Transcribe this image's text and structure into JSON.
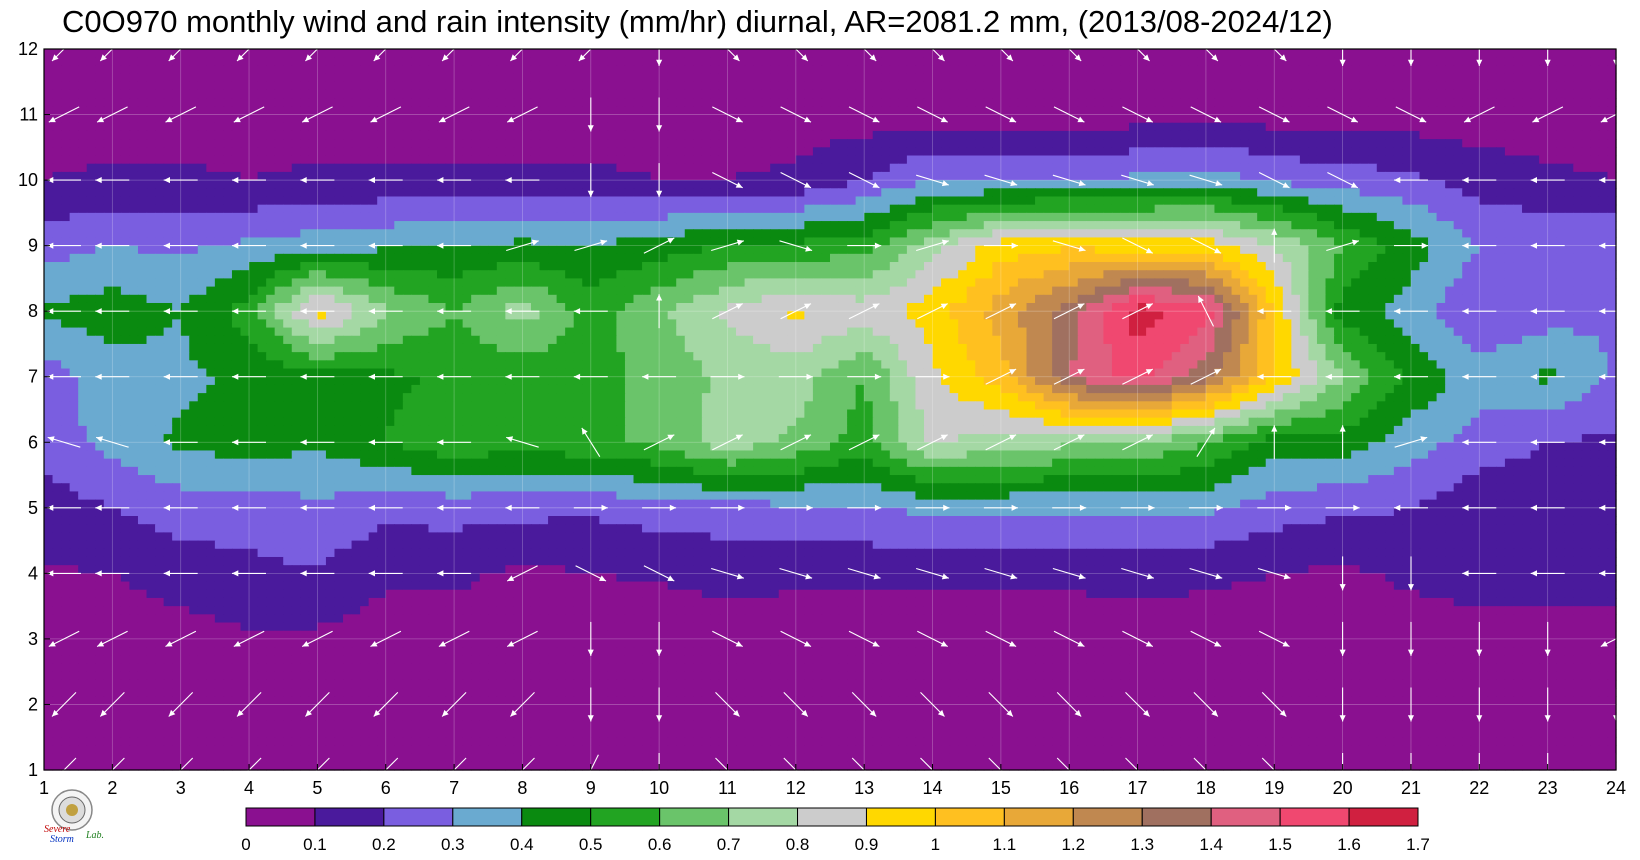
{
  "chart_data": {
    "type": "heatmap",
    "title": "C0O970 monthly wind and rain intensity (mm/hr) diurnal, AR=2081.2 mm, (2013/08-2024/12)",
    "xlabel": "",
    "ylabel": "",
    "xlim": [
      1,
      24
    ],
    "ylim": [
      1,
      12
    ],
    "x_ticks": [
      "1",
      "2",
      "3",
      "4",
      "5",
      "6",
      "7",
      "8",
      "9",
      "10",
      "11",
      "12",
      "13",
      "14",
      "15",
      "16",
      "17",
      "18",
      "19",
      "20",
      "21",
      "22",
      "23",
      "24"
    ],
    "y_ticks": [
      "1",
      "2",
      "3",
      "4",
      "5",
      "6",
      "7",
      "8",
      "9",
      "10",
      "11",
      "12"
    ],
    "grid": true,
    "colorbar": {
      "placement": "bottom",
      "levels": [
        "0",
        "0.1",
        "0.2",
        "0.3",
        "0.4",
        "0.5",
        "0.6",
        "0.7",
        "0.8",
        "0.9",
        "1",
        "1.1",
        "1.2",
        "1.3",
        "1.4",
        "1.5",
        "1.6",
        "1.7"
      ],
      "colors": [
        "#8a1090",
        "#4a1a9c",
        "#7a5ee0",
        "#6aaad0",
        "#0a8a10",
        "#22a422",
        "#6ac46a",
        "#a4d8a4",
        "#cccccc",
        "#ffd800",
        "#ffc020",
        "#e8a838",
        "#c08850",
        "#a07060",
        "#e06080",
        "#f04870",
        "#d02040"
      ]
    },
    "z_rows_by_month": [
      [
        0.05,
        0.05,
        0.05,
        0.05,
        0.05,
        0.05,
        0.05,
        0.05,
        0.05,
        0.05,
        0.05,
        0.05,
        0.05,
        0.05,
        0.05,
        0.05,
        0.05,
        0.05,
        0.05,
        0.05,
        0.05,
        0.05,
        0.05,
        0.05
      ],
      [
        0.05,
        0.05,
        0.05,
        0.05,
        0.05,
        0.05,
        0.05,
        0.05,
        0.05,
        0.05,
        0.05,
        0.05,
        0.05,
        0.05,
        0.05,
        0.05,
        0.05,
        0.05,
        0.05,
        0.05,
        0.05,
        0.05,
        0.05,
        0.05
      ],
      [
        0.05,
        0.05,
        0.05,
        0.09,
        0.08,
        0.05,
        0.05,
        0.05,
        0.05,
        0.05,
        0.05,
        0.05,
        0.05,
        0.05,
        0.05,
        0.05,
        0.05,
        0.05,
        0.05,
        0.05,
        0.05,
        0.05,
        0.05,
        0.05
      ],
      [
        0.09,
        0.1,
        0.15,
        0.18,
        0.19,
        0.12,
        0.12,
        0.08,
        0.1,
        0.11,
        0.13,
        0.12,
        0.12,
        0.12,
        0.12,
        0.12,
        0.13,
        0.12,
        0.1,
        0.08,
        0.12,
        0.15,
        0.15,
        0.15
      ],
      [
        0.15,
        0.2,
        0.25,
        0.24,
        0.28,
        0.23,
        0.24,
        0.23,
        0.22,
        0.25,
        0.26,
        0.28,
        0.3,
        0.32,
        0.32,
        0.32,
        0.33,
        0.32,
        0.25,
        0.22,
        0.2,
        0.13,
        0.14,
        0.15
      ],
      [
        0.25,
        0.33,
        0.42,
        0.45,
        0.42,
        0.5,
        0.58,
        0.54,
        0.58,
        0.62,
        0.76,
        0.68,
        0.55,
        0.82,
        0.75,
        0.72,
        0.7,
        0.6,
        0.45,
        0.45,
        0.35,
        0.25,
        0.2,
        0.18
      ],
      [
        0.25,
        0.36,
        0.38,
        0.42,
        0.46,
        0.48,
        0.52,
        0.52,
        0.56,
        0.64,
        0.72,
        0.75,
        0.6,
        0.88,
        1.05,
        1.4,
        1.55,
        1.35,
        1.0,
        0.7,
        0.48,
        0.35,
        0.42,
        0.28
      ],
      [
        0.42,
        0.45,
        0.4,
        0.55,
        0.95,
        0.72,
        0.6,
        0.75,
        0.55,
        0.68,
        0.82,
        0.92,
        0.85,
        0.95,
        1.15,
        1.35,
        1.65,
        1.55,
        1.0,
        0.45,
        0.35,
        0.2,
        0.25,
        0.3
      ],
      [
        0.25,
        0.3,
        0.28,
        0.32,
        0.35,
        0.38,
        0.4,
        0.42,
        0.4,
        0.45,
        0.5,
        0.52,
        0.55,
        0.75,
        0.95,
        0.98,
        0.95,
        0.95,
        0.8,
        0.6,
        0.45,
        0.3,
        0.28,
        0.28
      ],
      [
        0.1,
        0.12,
        0.12,
        0.1,
        0.12,
        0.12,
        0.12,
        0.12,
        0.12,
        0.1,
        0.1,
        0.12,
        0.2,
        0.3,
        0.28,
        0.3,
        0.32,
        0.35,
        0.28,
        0.25,
        0.22,
        0.15,
        0.12,
        0.1
      ],
      [
        0.05,
        0.05,
        0.05,
        0.05,
        0.05,
        0.05,
        0.05,
        0.05,
        0.05,
        0.05,
        0.05,
        0.05,
        0.05,
        0.05,
        0.05,
        0.05,
        0.05,
        0.08,
        0.05,
        0.05,
        0.05,
        0.05,
        0.05,
        0.05
      ],
      [
        0.05,
        0.05,
        0.05,
        0.05,
        0.05,
        0.05,
        0.05,
        0.05,
        0.05,
        0.05,
        0.05,
        0.05,
        0.05,
        0.05,
        0.05,
        0.05,
        0.05,
        0.05,
        0.05,
        0.05,
        0.05,
        0.05,
        0.05,
        0.05
      ]
    ],
    "wind_vectors_by_month": [
      [
        [
          -1,
          -1
        ],
        [
          -1,
          -1
        ],
        [
          -1,
          -1
        ],
        [
          -1,
          -1
        ],
        [
          -1,
          -1
        ],
        [
          -1,
          -1
        ],
        [
          -1,
          -1
        ],
        [
          -1,
          -1
        ],
        [
          -0.5,
          -1
        ],
        [
          0,
          -1
        ],
        [
          1,
          -1
        ],
        [
          1,
          -1
        ],
        [
          1,
          -1
        ],
        [
          1,
          -1
        ],
        [
          1,
          -1
        ],
        [
          1,
          -1
        ],
        [
          1,
          -1
        ],
        [
          1,
          -1
        ],
        [
          1,
          -1
        ],
        [
          0,
          -1
        ],
        [
          0,
          -1
        ],
        [
          0,
          -1
        ],
        [
          0,
          -1
        ],
        [
          0,
          -1
        ]
      ],
      [
        [
          -1,
          -1
        ],
        [
          -1,
          -1
        ],
        [
          -1,
          -1
        ],
        [
          -1,
          -1
        ],
        [
          -1,
          -1
        ],
        [
          -1,
          -1
        ],
        [
          -1,
          -1
        ],
        [
          -1,
          -1
        ],
        [
          0,
          -1
        ],
        [
          0,
          -1
        ],
        [
          1,
          -1
        ],
        [
          1,
          -1
        ],
        [
          1,
          -1
        ],
        [
          1,
          -1
        ],
        [
          1,
          -1
        ],
        [
          1,
          -1
        ],
        [
          1,
          -1
        ],
        [
          1,
          -1
        ],
        [
          1,
          -1
        ],
        [
          0,
          -1
        ],
        [
          0,
          -1
        ],
        [
          0,
          -1
        ],
        [
          0,
          -1
        ],
        [
          0,
          -1
        ]
      ],
      [
        [
          -1,
          -0.5
        ],
        [
          -1,
          -0.5
        ],
        [
          -1,
          -0.5
        ],
        [
          -1,
          -0.5
        ],
        [
          -1,
          -0.5
        ],
        [
          -1,
          -0.5
        ],
        [
          -1,
          -0.5
        ],
        [
          -1,
          -0.5
        ],
        [
          0,
          -1
        ],
        [
          0,
          -1
        ],
        [
          1,
          -0.5
        ],
        [
          1,
          -0.5
        ],
        [
          1,
          -0.5
        ],
        [
          1,
          -0.5
        ],
        [
          1,
          -0.5
        ],
        [
          1,
          -0.5
        ],
        [
          1,
          -0.5
        ],
        [
          1,
          -0.5
        ],
        [
          1,
          -0.5
        ],
        [
          0,
          -1
        ],
        [
          0,
          -1
        ],
        [
          0,
          -1
        ],
        [
          0,
          -1
        ],
        [
          -1,
          -0.5
        ]
      ],
      [
        [
          -1,
          0
        ],
        [
          -1,
          0
        ],
        [
          -1,
          0
        ],
        [
          -1,
          0
        ],
        [
          -1,
          0
        ],
        [
          -1,
          0
        ],
        [
          -1,
          0
        ],
        [
          -1,
          -0.5
        ],
        [
          1,
          -0.5
        ],
        [
          1,
          -0.5
        ],
        [
          1,
          -0.3
        ],
        [
          1,
          -0.3
        ],
        [
          1,
          -0.3
        ],
        [
          1,
          -0.3
        ],
        [
          1,
          -0.3
        ],
        [
          1,
          -0.3
        ],
        [
          1,
          -0.3
        ],
        [
          1,
          -0.3
        ],
        [
          1,
          -0.3
        ],
        [
          0,
          -1
        ],
        [
          0,
          -1
        ],
        [
          -1,
          0
        ],
        [
          -1,
          0
        ],
        [
          -1,
          0
        ]
      ],
      [
        [
          -1,
          0
        ],
        [
          -1,
          0
        ],
        [
          -1,
          0
        ],
        [
          -1,
          0
        ],
        [
          -1,
          0
        ],
        [
          -1,
          0
        ],
        [
          -1,
          0
        ],
        [
          -1,
          0
        ],
        [
          1,
          0
        ],
        [
          1,
          0
        ],
        [
          1,
          0
        ],
        [
          1,
          0
        ],
        [
          1,
          0
        ],
        [
          1,
          0
        ],
        [
          1,
          0
        ],
        [
          1,
          0
        ],
        [
          1,
          0
        ],
        [
          1,
          0
        ],
        [
          1,
          0
        ],
        [
          1,
          0
        ],
        [
          -1,
          0
        ],
        [
          -1,
          0
        ],
        [
          -1,
          0
        ],
        [
          -1,
          0
        ]
      ],
      [
        [
          -1,
          0.3
        ],
        [
          -1,
          0.3
        ],
        [
          -1,
          0
        ],
        [
          -1,
          0
        ],
        [
          -1,
          0
        ],
        [
          -1,
          0
        ],
        [
          -1,
          0
        ],
        [
          -1,
          0.3
        ],
        [
          -0.5,
          0.8
        ],
        [
          1,
          0.5
        ],
        [
          1,
          0.5
        ],
        [
          1,
          0.5
        ],
        [
          1,
          0.5
        ],
        [
          1,
          0.5
        ],
        [
          1,
          0.5
        ],
        [
          1,
          0.5
        ],
        [
          1,
          0.5
        ],
        [
          0.5,
          0.8
        ],
        [
          0,
          1
        ],
        [
          0,
          1
        ],
        [
          1,
          0.3
        ],
        [
          -1,
          0
        ],
        [
          -1,
          0
        ],
        [
          -1,
          0
        ]
      ],
      [
        [
          -1,
          0
        ],
        [
          -1,
          0
        ],
        [
          -1,
          0
        ],
        [
          -1,
          0
        ],
        [
          -1,
          0
        ],
        [
          -1,
          0
        ],
        [
          -1,
          0
        ],
        [
          -1,
          0
        ],
        [
          -1,
          0
        ],
        [
          -1,
          0
        ],
        [
          1,
          0
        ],
        [
          1,
          0
        ],
        [
          1,
          0
        ],
        [
          1,
          0
        ],
        [
          1,
          0.5
        ],
        [
          1,
          0.5
        ],
        [
          1,
          0.5
        ],
        [
          1,
          0.5
        ],
        [
          -1,
          0
        ],
        [
          -1,
          0
        ],
        [
          -1,
          0
        ],
        [
          -1,
          0
        ],
        [
          -1,
          0
        ],
        [
          -1,
          0
        ]
      ],
      [
        [
          -1,
          0
        ],
        [
          -1,
          0
        ],
        [
          -1,
          0
        ],
        [
          -1,
          0
        ],
        [
          -1,
          0
        ],
        [
          -1,
          0
        ],
        [
          -1,
          0
        ],
        [
          -1,
          0
        ],
        [
          -1,
          0
        ],
        [
          0,
          1
        ],
        [
          1,
          0.5
        ],
        [
          1,
          0.5
        ],
        [
          1,
          0.5
        ],
        [
          1,
          0.5
        ],
        [
          1,
          0.5
        ],
        [
          1,
          0.5
        ],
        [
          1,
          0.5
        ],
        [
          -0.5,
          1
        ],
        [
          -1,
          0
        ],
        [
          -1,
          0
        ],
        [
          -1,
          0
        ],
        [
          -1,
          0
        ],
        [
          -1,
          0
        ],
        [
          -1,
          0
        ]
      ],
      [
        [
          -1,
          0
        ],
        [
          -1,
          0
        ],
        [
          -1,
          0
        ],
        [
          -1,
          0
        ],
        [
          -1,
          0
        ],
        [
          -1,
          0
        ],
        [
          -1,
          0
        ],
        [
          1,
          0.3
        ],
        [
          1,
          0.3
        ],
        [
          1,
          0.5
        ],
        [
          1,
          0.3
        ],
        [
          1,
          -0.3
        ],
        [
          1,
          0
        ],
        [
          1,
          0.3
        ],
        [
          1,
          0
        ],
        [
          1,
          -0.3
        ],
        [
          1,
          -0.5
        ],
        [
          1,
          -0.5
        ],
        [
          0,
          1
        ],
        [
          1,
          0.3
        ],
        [
          1,
          0
        ],
        [
          -1,
          0
        ],
        [
          -1,
          0
        ],
        [
          -1,
          0
        ]
      ],
      [
        [
          -1,
          0
        ],
        [
          -1,
          0
        ],
        [
          -1,
          0
        ],
        [
          -1,
          0
        ],
        [
          -1,
          0
        ],
        [
          -1,
          0
        ],
        [
          -1,
          0
        ],
        [
          -1,
          0
        ],
        [
          0,
          -1
        ],
        [
          0,
          -1
        ],
        [
          1,
          -0.5
        ],
        [
          1,
          -0.5
        ],
        [
          1,
          -0.5
        ],
        [
          1,
          -0.3
        ],
        [
          1,
          -0.3
        ],
        [
          1,
          -0.3
        ],
        [
          1,
          -0.3
        ],
        [
          1,
          -0.3
        ],
        [
          1,
          -0.5
        ],
        [
          1,
          -0.5
        ],
        [
          -1,
          0
        ],
        [
          -1,
          0
        ],
        [
          -1,
          0
        ],
        [
          -1,
          0
        ]
      ],
      [
        [
          -1,
          -0.5
        ],
        [
          -1,
          -0.5
        ],
        [
          -1,
          -0.5
        ],
        [
          -1,
          -0.5
        ],
        [
          -1,
          -0.5
        ],
        [
          -1,
          -0.5
        ],
        [
          -1,
          -0.5
        ],
        [
          -1,
          -0.5
        ],
        [
          0,
          -1
        ],
        [
          0,
          -1
        ],
        [
          1,
          -0.5
        ],
        [
          1,
          -0.5
        ],
        [
          1,
          -0.5
        ],
        [
          1,
          -0.5
        ],
        [
          1,
          -0.5
        ],
        [
          1,
          -0.5
        ],
        [
          1,
          -0.5
        ],
        [
          1,
          -0.5
        ],
        [
          1,
          -0.5
        ],
        [
          1,
          -0.5
        ],
        [
          1,
          -0.5
        ],
        [
          -1,
          -0.5
        ],
        [
          -1,
          -0.5
        ],
        [
          -1,
          -0.5
        ]
      ],
      [
        [
          -1,
          -1
        ],
        [
          -1,
          -1
        ],
        [
          -1,
          -1
        ],
        [
          -1,
          -1
        ],
        [
          -1,
          -1
        ],
        [
          -1,
          -1
        ],
        [
          -1,
          -1
        ],
        [
          -1,
          -1
        ],
        [
          -1,
          -1
        ],
        [
          0,
          -1
        ],
        [
          1,
          -1
        ],
        [
          1,
          -1
        ],
        [
          1,
          -1
        ],
        [
          1,
          -1
        ],
        [
          1,
          -1
        ],
        [
          1,
          -1
        ],
        [
          1,
          -1
        ],
        [
          1,
          -1
        ],
        [
          1,
          -1
        ],
        [
          0,
          -1
        ],
        [
          0,
          -1
        ],
        [
          0,
          -1
        ],
        [
          0,
          -1
        ],
        [
          0,
          -1
        ]
      ]
    ],
    "contour_line_color": "#e8a020",
    "wind_arrow_color": "#ffffff"
  },
  "logo": {
    "text_line1": "Severe",
    "text_line2": "Storm",
    "text_line3": "Lab."
  }
}
